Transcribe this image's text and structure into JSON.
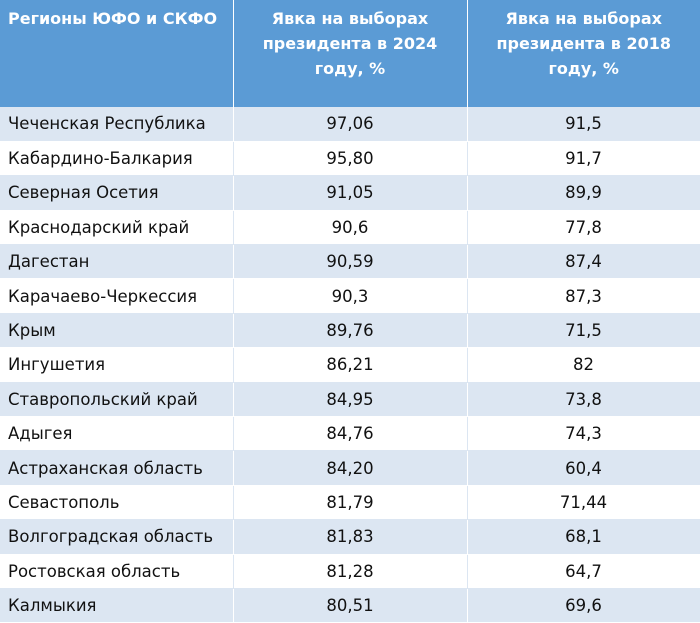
{
  "table": {
    "header": [
      "Регионы ЮФО и СКФО",
      "Явка на выборах президента в 2024 году, %",
      "Явка на выборах президента в 2018 году, %"
    ],
    "rows": [
      [
        "Чеченская Республика",
        "97,06",
        "91,5"
      ],
      [
        "Кабардино-Балкария",
        "95,80",
        "91,7"
      ],
      [
        "Северная Осетия",
        "91,05",
        "89,9"
      ],
      [
        "Краснодарский край",
        "90,6",
        "77,8"
      ],
      [
        "Дагестан",
        "90,59",
        "87,4"
      ],
      [
        "Карачаево-Черкессия",
        "90,3",
        "87,3"
      ],
      [
        "Крым",
        "89,76",
        "71,5"
      ],
      [
        "Ингушетия",
        "86,21",
        "82"
      ],
      [
        "Ставропольский край",
        "84,95",
        "73,8"
      ],
      [
        "Адыгея",
        "84,76",
        "74,3"
      ],
      [
        "Астраханская область",
        "84,20",
        "60,4"
      ],
      [
        "Севастополь",
        "81,79",
        "71,44"
      ],
      [
        "Волгоградская область",
        "81,83",
        "68,1"
      ],
      [
        "Ростовская область",
        "81,28",
        "64,7"
      ],
      [
        "Калмыкия",
        "80,51",
        "69,6"
      ]
    ]
  }
}
